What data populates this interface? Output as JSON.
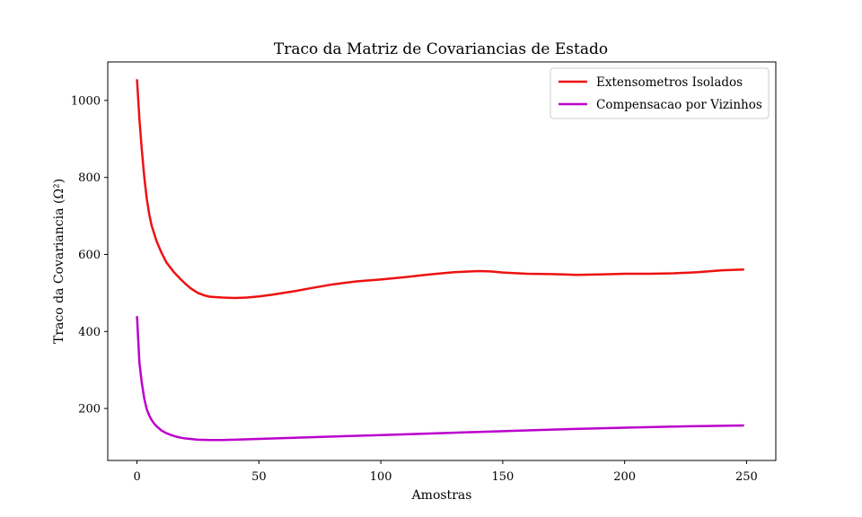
{
  "chart_data": {
    "type": "line",
    "title": "Traco da Matriz de Covariancias de Estado",
    "xlabel": "Amostras",
    "ylabel": "Traco da Covariancia (Ω²)",
    "xlim": [
      -12,
      262
    ],
    "ylim": [
      65,
      1100
    ],
    "xticks": [
      0,
      50,
      100,
      150,
      200,
      250
    ],
    "yticks": [
      200,
      400,
      600,
      800,
      1000
    ],
    "grid": false,
    "legend_position": "top-right",
    "series": [
      {
        "name": "Extensometros Isolados",
        "color": "#ee1111",
        "x": [
          0,
          1,
          2,
          3,
          4,
          5,
          6,
          8,
          10,
          12,
          15,
          18,
          20,
          22,
          25,
          28,
          30,
          35,
          40,
          45,
          50,
          55,
          60,
          65,
          70,
          80,
          90,
          100,
          110,
          120,
          130,
          140,
          145,
          150,
          160,
          170,
          180,
          190,
          200,
          210,
          220,
          230,
          240,
          249
        ],
        "y": [
          1055,
          950,
          870,
          800,
          745,
          705,
          675,
          635,
          605,
          580,
          555,
          535,
          523,
          512,
          500,
          493,
          490,
          488,
          487,
          488,
          491,
          495,
          500,
          505,
          511,
          522,
          530,
          535,
          541,
          548,
          554,
          557,
          556,
          553,
          550,
          549,
          547,
          548,
          550,
          550,
          551,
          554,
          559,
          561
        ]
      },
      {
        "name": "Compensacao por Vizinhos",
        "color": "#bb00cc",
        "x": [
          0,
          1,
          2,
          3,
          4,
          5,
          6,
          7,
          8,
          10,
          12,
          14,
          16,
          18,
          20,
          25,
          30,
          35,
          40,
          50,
          60,
          70,
          80,
          100,
          120,
          140,
          160,
          180,
          200,
          220,
          240,
          249
        ],
        "y": [
          440,
          318,
          265,
          225,
          198,
          182,
          170,
          161,
          154,
          143,
          136,
          131,
          127,
          124,
          122,
          119,
          118,
          118,
          119,
          121,
          123,
          125,
          127,
          131,
          135,
          139,
          143,
          147,
          150,
          153,
          155,
          156
        ]
      }
    ]
  }
}
